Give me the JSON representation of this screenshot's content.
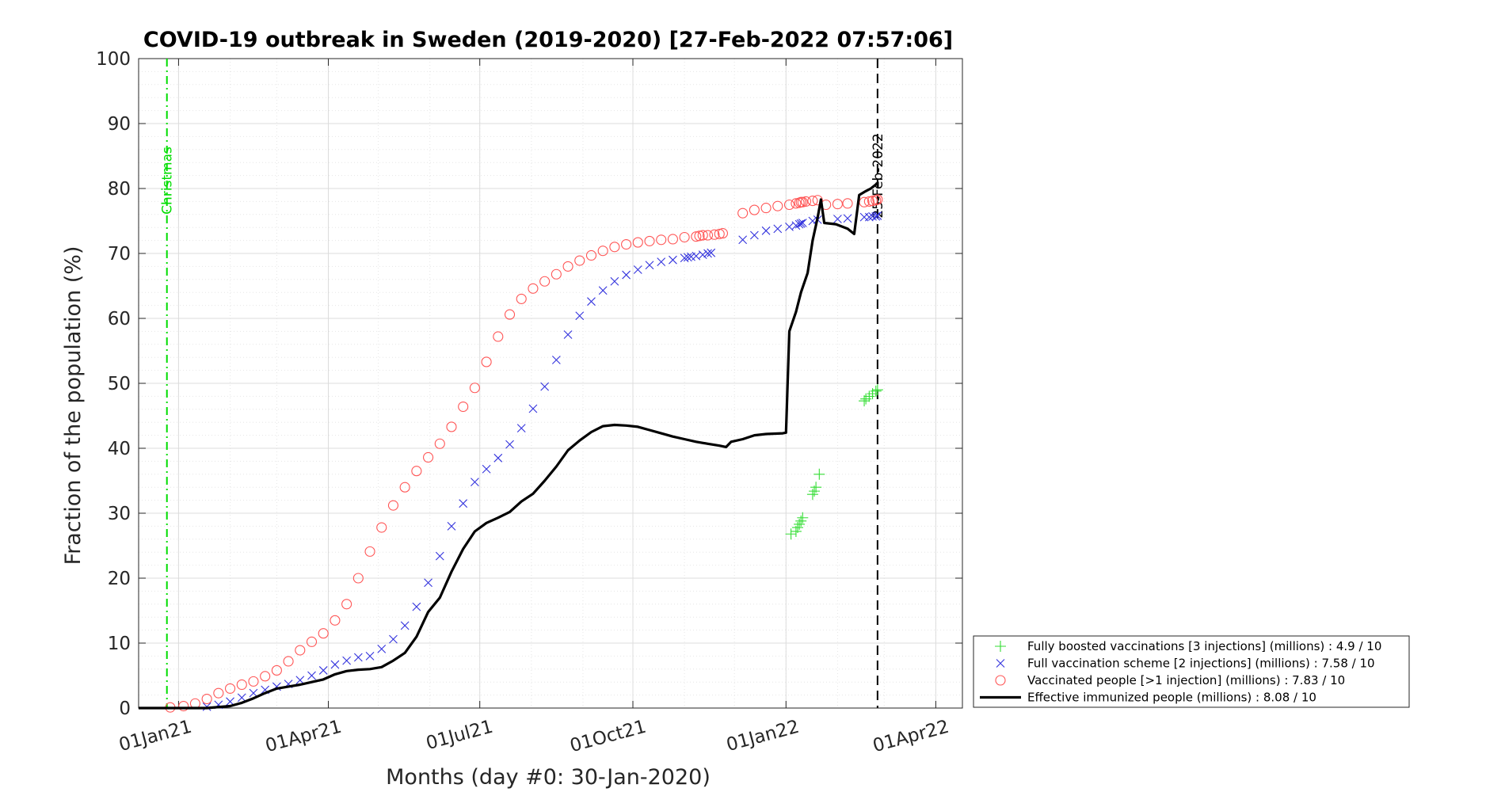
{
  "chart_data": {
    "type": "line",
    "title": "COVID-19 outbreak in Sweden (2019-2020) [27-Feb-2022 07:57:06]",
    "xlabel": "Months (day #0: 30-Jan-2020)",
    "ylabel": "Fraction of the population (%)",
    "ylim": [
      0,
      100
    ],
    "yticks": [
      "0",
      "10",
      "20",
      "30",
      "40",
      "50",
      "60",
      "70",
      "80",
      "90",
      "100"
    ],
    "xlim": [
      "2020-12-08",
      "2022-04-17"
    ],
    "xticks": [
      {
        "date": "2021-01-01",
        "label": "01Jan21"
      },
      {
        "date": "2021-04-01",
        "label": "01Apr21"
      },
      {
        "date": "2021-07-01",
        "label": "01Jul21"
      },
      {
        "date": "2021-10-01",
        "label": "01Oct21"
      },
      {
        "date": "2022-01-01",
        "label": "01Jan22"
      },
      {
        "date": "2022-04-01",
        "label": "01Apr22"
      }
    ],
    "grid": true,
    "legend_position": "bottom-right-outside",
    "vlines": [
      {
        "date": "2020-12-25",
        "label": "Christmas",
        "color": "#00dd00",
        "style": "dash-dot"
      },
      {
        "date": "2022-02-25",
        "label": "25-Feb-2022",
        "color": "#000000",
        "style": "dashed"
      }
    ],
    "series": [
      {
        "name": "Fully boosted vaccinations [3 injections] (millions) : 4.9 / 10",
        "marker": "plus",
        "color": "#33dd33",
        "points": [
          [
            "2022-01-04",
            26.8
          ],
          [
            "2022-01-07",
            27.2
          ],
          [
            "2022-01-08",
            27.8
          ],
          [
            "2022-01-09",
            28.3
          ],
          [
            "2022-01-10",
            28.8
          ],
          [
            "2022-01-11",
            29.3
          ],
          [
            "2022-01-17",
            32.9
          ],
          [
            "2022-01-18",
            33.4
          ],
          [
            "2022-01-19",
            34.0
          ],
          [
            "2022-01-21",
            36.0
          ],
          [
            "2022-02-17",
            47.3
          ],
          [
            "2022-02-18",
            47.6
          ],
          [
            "2022-02-20",
            48.0
          ],
          [
            "2022-02-22",
            48.4
          ],
          [
            "2022-02-24",
            48.8
          ],
          [
            "2022-02-25",
            49.0
          ]
        ]
      },
      {
        "name": "Full vaccination scheme [2 injections] (millions) : 7.58 / 10",
        "marker": "x",
        "color": "#3333dd",
        "points": [
          [
            "2021-01-18",
            0.2
          ],
          [
            "2021-01-25",
            0.5
          ],
          [
            "2021-02-01",
            1.0
          ],
          [
            "2021-02-08",
            1.6
          ],
          [
            "2021-02-15",
            2.3
          ],
          [
            "2021-02-22",
            2.8
          ],
          [
            "2021-03-01",
            3.3
          ],
          [
            "2021-03-08",
            3.7
          ],
          [
            "2021-03-15",
            4.3
          ],
          [
            "2021-03-22",
            5.0
          ],
          [
            "2021-03-29",
            5.8
          ],
          [
            "2021-04-05",
            6.7
          ],
          [
            "2021-04-12",
            7.3
          ],
          [
            "2021-04-19",
            7.8
          ],
          [
            "2021-04-26",
            8.0
          ],
          [
            "2021-05-03",
            9.1
          ],
          [
            "2021-05-10",
            10.6
          ],
          [
            "2021-05-17",
            12.7
          ],
          [
            "2021-05-24",
            15.6
          ],
          [
            "2021-05-31",
            19.3
          ],
          [
            "2021-06-07",
            23.4
          ],
          [
            "2021-06-14",
            28.0
          ],
          [
            "2021-06-21",
            31.5
          ],
          [
            "2021-06-28",
            34.8
          ],
          [
            "2021-07-05",
            36.8
          ],
          [
            "2021-07-12",
            38.5
          ],
          [
            "2021-07-19",
            40.6
          ],
          [
            "2021-07-26",
            43.1
          ],
          [
            "2021-08-02",
            46.1
          ],
          [
            "2021-08-09",
            49.5
          ],
          [
            "2021-08-16",
            53.6
          ],
          [
            "2021-08-23",
            57.5
          ],
          [
            "2021-08-30",
            60.4
          ],
          [
            "2021-09-06",
            62.6
          ],
          [
            "2021-09-13",
            64.3
          ],
          [
            "2021-09-20",
            65.7
          ],
          [
            "2021-09-27",
            66.7
          ],
          [
            "2021-10-04",
            67.5
          ],
          [
            "2021-10-11",
            68.2
          ],
          [
            "2021-10-18",
            68.7
          ],
          [
            "2021-10-25",
            69.0
          ],
          [
            "2021-11-01",
            69.3
          ],
          [
            "2021-11-03",
            69.4
          ],
          [
            "2021-11-05",
            69.5
          ],
          [
            "2021-11-08",
            69.6
          ],
          [
            "2021-11-12",
            69.8
          ],
          [
            "2021-11-15",
            70.0
          ],
          [
            "2021-11-17",
            70.1
          ],
          [
            "2021-12-06",
            72.1
          ],
          [
            "2021-12-13",
            72.8
          ],
          [
            "2021-12-20",
            73.5
          ],
          [
            "2021-12-27",
            73.8
          ],
          [
            "2022-01-03",
            74.1
          ],
          [
            "2022-01-07",
            74.3
          ],
          [
            "2022-01-09",
            74.5
          ],
          [
            "2022-01-10",
            74.6
          ],
          [
            "2022-01-11",
            74.7
          ],
          [
            "2022-01-17",
            75.0
          ],
          [
            "2022-01-20",
            75.2
          ],
          [
            "2022-02-01",
            75.3
          ],
          [
            "2022-02-07",
            75.4
          ],
          [
            "2022-02-17",
            75.6
          ],
          [
            "2022-02-20",
            75.6
          ],
          [
            "2022-02-22",
            75.7
          ],
          [
            "2022-02-24",
            75.7
          ],
          [
            "2022-02-25",
            75.8
          ]
        ]
      },
      {
        "name": "Vaccinated people [>1 injection] (millions) : 7.83 / 10",
        "marker": "circle",
        "color": "#ff5555",
        "points": [
          [
            "2020-12-27",
            0.1
          ],
          [
            "2021-01-04",
            0.3
          ],
          [
            "2021-01-11",
            0.7
          ],
          [
            "2021-01-18",
            1.4
          ],
          [
            "2021-01-25",
            2.3
          ],
          [
            "2021-02-01",
            3.0
          ],
          [
            "2021-02-08",
            3.6
          ],
          [
            "2021-02-15",
            4.1
          ],
          [
            "2021-02-22",
            4.9
          ],
          [
            "2021-03-01",
            5.8
          ],
          [
            "2021-03-08",
            7.2
          ],
          [
            "2021-03-15",
            8.9
          ],
          [
            "2021-03-22",
            10.2
          ],
          [
            "2021-03-29",
            11.5
          ],
          [
            "2021-04-05",
            13.5
          ],
          [
            "2021-04-12",
            16.0
          ],
          [
            "2021-04-19",
            20.0
          ],
          [
            "2021-04-26",
            24.1
          ],
          [
            "2021-05-03",
            27.8
          ],
          [
            "2021-05-10",
            31.2
          ],
          [
            "2021-05-17",
            34.0
          ],
          [
            "2021-05-24",
            36.5
          ],
          [
            "2021-05-31",
            38.6
          ],
          [
            "2021-06-07",
            40.7
          ],
          [
            "2021-06-14",
            43.3
          ],
          [
            "2021-06-21",
            46.4
          ],
          [
            "2021-06-28",
            49.3
          ],
          [
            "2021-07-05",
            53.3
          ],
          [
            "2021-07-12",
            57.2
          ],
          [
            "2021-07-19",
            60.6
          ],
          [
            "2021-07-26",
            63.0
          ],
          [
            "2021-08-02",
            64.6
          ],
          [
            "2021-08-09",
            65.7
          ],
          [
            "2021-08-16",
            66.8
          ],
          [
            "2021-08-23",
            68.0
          ],
          [
            "2021-08-30",
            68.9
          ],
          [
            "2021-09-06",
            69.7
          ],
          [
            "2021-09-13",
            70.4
          ],
          [
            "2021-09-20",
            71.0
          ],
          [
            "2021-09-27",
            71.4
          ],
          [
            "2021-10-04",
            71.7
          ],
          [
            "2021-10-11",
            71.9
          ],
          [
            "2021-10-18",
            72.1
          ],
          [
            "2021-10-25",
            72.2
          ],
          [
            "2021-11-01",
            72.5
          ],
          [
            "2021-11-08",
            72.6
          ],
          [
            "2021-11-10",
            72.7
          ],
          [
            "2021-11-12",
            72.8
          ],
          [
            "2021-11-15",
            72.8
          ],
          [
            "2021-11-19",
            72.9
          ],
          [
            "2021-11-22",
            73.0
          ],
          [
            "2021-11-24",
            73.1
          ],
          [
            "2021-12-06",
            76.2
          ],
          [
            "2021-12-13",
            76.7
          ],
          [
            "2021-12-20",
            77.0
          ],
          [
            "2021-12-27",
            77.3
          ],
          [
            "2022-01-03",
            77.5
          ],
          [
            "2022-01-07",
            77.7
          ],
          [
            "2022-01-09",
            77.8
          ],
          [
            "2022-01-10",
            77.9
          ],
          [
            "2022-01-11",
            77.9
          ],
          [
            "2022-01-13",
            78.0
          ],
          [
            "2022-01-17",
            78.1
          ],
          [
            "2022-01-20",
            78.2
          ],
          [
            "2022-01-25",
            77.5
          ],
          [
            "2022-02-01",
            77.6
          ],
          [
            "2022-02-07",
            77.7
          ],
          [
            "2022-02-17",
            77.9
          ],
          [
            "2022-02-20",
            78.0
          ],
          [
            "2022-02-22",
            78.1
          ],
          [
            "2022-02-24",
            78.2
          ],
          [
            "2022-02-25",
            78.3
          ]
        ]
      },
      {
        "name": "Effective immunized people (millions) : 8.08 / 10",
        "marker": "line",
        "color": "#000000",
        "points": [
          [
            "2020-12-08",
            0.0
          ],
          [
            "2021-01-18",
            0.0
          ],
          [
            "2021-02-01",
            0.3
          ],
          [
            "2021-02-08",
            0.8
          ],
          [
            "2021-02-15",
            1.5
          ],
          [
            "2021-02-22",
            2.3
          ],
          [
            "2021-03-01",
            3.0
          ],
          [
            "2021-03-08",
            3.3
          ],
          [
            "2021-03-15",
            3.6
          ],
          [
            "2021-03-22",
            4.0
          ],
          [
            "2021-03-29",
            4.4
          ],
          [
            "2021-04-05",
            5.2
          ],
          [
            "2021-04-12",
            5.7
          ],
          [
            "2021-04-19",
            5.9
          ],
          [
            "2021-04-26",
            6.0
          ],
          [
            "2021-05-03",
            6.3
          ],
          [
            "2021-05-10",
            7.3
          ],
          [
            "2021-05-17",
            8.5
          ],
          [
            "2021-05-24",
            11.0
          ],
          [
            "2021-05-31",
            14.8
          ],
          [
            "2021-06-07",
            17.0
          ],
          [
            "2021-06-14",
            21.0
          ],
          [
            "2021-06-21",
            24.5
          ],
          [
            "2021-06-28",
            27.2
          ],
          [
            "2021-07-05",
            28.5
          ],
          [
            "2021-07-12",
            29.3
          ],
          [
            "2021-07-19",
            30.2
          ],
          [
            "2021-07-26",
            31.8
          ],
          [
            "2021-08-02",
            33.0
          ],
          [
            "2021-08-09",
            35.0
          ],
          [
            "2021-08-16",
            37.2
          ],
          [
            "2021-08-23",
            39.7
          ],
          [
            "2021-08-30",
            41.2
          ],
          [
            "2021-09-06",
            42.5
          ],
          [
            "2021-09-13",
            43.4
          ],
          [
            "2021-09-20",
            43.6
          ],
          [
            "2021-09-27",
            43.5
          ],
          [
            "2021-10-04",
            43.3
          ],
          [
            "2021-10-11",
            42.8
          ],
          [
            "2021-10-18",
            42.3
          ],
          [
            "2021-10-25",
            41.8
          ],
          [
            "2021-11-01",
            41.4
          ],
          [
            "2021-11-08",
            41.0
          ],
          [
            "2021-11-15",
            40.7
          ],
          [
            "2021-11-22",
            40.4
          ],
          [
            "2021-11-26",
            40.2
          ],
          [
            "2021-11-29",
            41.0
          ],
          [
            "2021-12-06",
            41.4
          ],
          [
            "2021-12-13",
            42.0
          ],
          [
            "2021-12-20",
            42.2
          ],
          [
            "2021-12-30",
            42.3
          ],
          [
            "2022-01-01",
            42.4
          ],
          [
            "2022-01-03",
            58.0
          ],
          [
            "2022-01-07",
            61.0
          ],
          [
            "2022-01-10",
            64.0
          ],
          [
            "2022-01-14",
            67.0
          ],
          [
            "2022-01-17",
            72.0
          ],
          [
            "2022-01-20",
            75.5
          ],
          [
            "2022-01-22",
            78.3
          ],
          [
            "2022-01-24",
            74.7
          ],
          [
            "2022-01-31",
            74.5
          ],
          [
            "2022-02-07",
            73.8
          ],
          [
            "2022-02-11",
            73.0
          ],
          [
            "2022-02-14",
            79.0
          ],
          [
            "2022-02-18",
            79.6
          ],
          [
            "2022-02-21",
            80.0
          ],
          [
            "2022-02-25",
            80.8
          ]
        ]
      }
    ]
  }
}
